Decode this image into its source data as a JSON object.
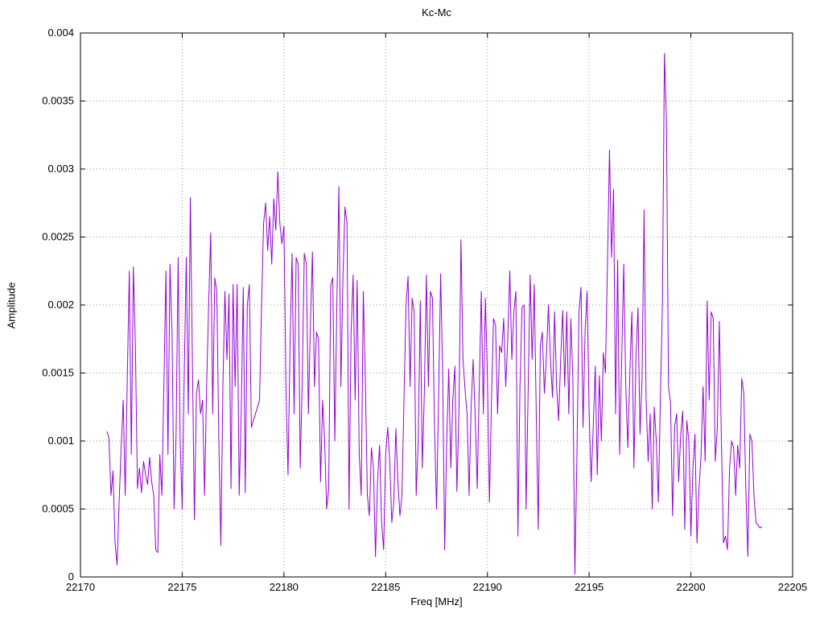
{
  "title": "Kc-Mc",
  "colors": {
    "line": "#9400d3",
    "grid": "#9a9a9a",
    "border": "#000000",
    "background": "#ffffff"
  },
  "chart_data": {
    "type": "line",
    "title": "Kc-Mc",
    "xlabel": "Freq [MHz]",
    "ylabel": "Amplitude",
    "xlim": [
      22170,
      22205
    ],
    "ylim": [
      0,
      0.004
    ],
    "grid": true,
    "legend": "none",
    "x_ticks": [
      22170,
      22175,
      22180,
      22185,
      22190,
      22195,
      22200,
      22205
    ],
    "x_tick_labels": [
      "22170",
      "22175",
      "22180",
      "22185",
      "22190",
      "22195",
      "22200",
      "22205"
    ],
    "y_ticks": [
      0,
      0.0005,
      0.001,
      0.0015,
      0.002,
      0.0025,
      0.003,
      0.0035,
      0.004
    ],
    "y_tick_labels": [
      "0",
      "0.0005",
      "0.001",
      "0.0015",
      "0.002",
      "0.0025",
      "0.003",
      "0.0035",
      "0.004"
    ],
    "series": [
      {
        "name": "Kc-Mc",
        "x_start": 22171.3,
        "x_step": 0.1,
        "y_scale": 0.0001,
        "values": [
          10.7,
          10.2,
          6.0,
          7.8,
          2.5,
          0.9,
          5.5,
          9.5,
          13.0,
          6.0,
          14.5,
          22.5,
          9.0,
          22.8,
          17.0,
          6.5,
          8.0,
          6.2,
          8.5,
          7.5,
          6.8,
          8.8,
          7.0,
          6.0,
          2.0,
          1.8,
          9.0,
          6.0,
          14.0,
          22.5,
          9.0,
          23.0,
          18.0,
          5.0,
          10.5,
          23.5,
          10.0,
          5.0,
          15.0,
          23.5,
          12.0,
          27.9,
          16.0,
          4.2,
          13.5,
          14.5,
          12.0,
          13.0,
          6.0,
          14.0,
          20.0,
          25.3,
          12.0,
          22.0,
          21.0,
          10.0,
          2.3,
          14.0,
          21.0,
          16.0,
          20.8,
          6.5,
          21.5,
          14.0,
          21.5,
          6.0,
          12.0,
          21.3,
          6.2,
          20.0,
          21.5,
          11.0,
          11.5,
          12.0,
          12.5,
          13.0,
          20.0,
          26.0,
          27.5,
          24.0,
          26.5,
          23.0,
          27.8,
          25.5,
          29.8,
          26.0,
          24.5,
          25.8,
          14.0,
          7.5,
          17.0,
          23.8,
          12.0,
          23.5,
          23.0,
          8.0,
          14.5,
          23.8,
          23.0,
          12.0,
          18.5,
          23.9,
          14.0,
          18.0,
          17.5,
          7.0,
          13.0,
          10.0,
          5.0,
          6.5,
          21.5,
          22.0,
          10.0,
          20.0,
          28.7,
          14.0,
          22.0,
          27.2,
          26.0,
          5.0,
          18.0,
          22.2,
          13.0,
          21.8,
          9.0,
          6.0,
          21.0,
          14.5,
          6.0,
          4.5,
          9.5,
          8.0,
          1.5,
          7.0,
          9.7,
          4.0,
          2.0,
          9.0,
          11.0,
          8.5,
          4.0,
          5.5,
          10.9,
          7.0,
          4.5,
          6.0,
          13.0,
          20.0,
          22.1,
          14.0,
          20.5,
          19.5,
          6.0,
          10.0,
          20.3,
          8.0,
          13.5,
          22.2,
          14.0,
          21.0,
          20.5,
          11.0,
          5.0,
          13.0,
          22.3,
          15.0,
          2.0,
          10.0,
          15.3,
          8.0,
          13.0,
          15.5,
          6.3,
          12.0,
          24.8,
          16.0,
          13.8,
          12.0,
          6.0,
          12.5,
          16.0,
          11.8,
          6.5,
          14.0,
          21.0,
          12.0,
          20.5,
          14.8,
          5.5,
          13.0,
          19.0,
          18.5,
          12.0,
          17.0,
          16.5,
          19.0,
          14.0,
          17.5,
          22.5,
          16.0,
          19.5,
          21.0,
          3.0,
          14.0,
          19.8,
          20.0,
          5.0,
          13.5,
          22.2,
          16.0,
          21.5,
          12.0,
          3.5,
          17.0,
          18.0,
          13.5,
          16.2,
          20.0,
          16.0,
          13.2,
          19.5,
          14.0,
          11.5,
          16.0,
          19.6,
          14.0,
          19.5,
          12.0,
          19.0,
          14.5,
          0.2,
          9.0,
          19.5,
          21.3,
          11.0,
          18.0,
          21.0,
          12.0,
          7.0,
          11.0,
          15.5,
          7.5,
          14.8,
          10.0,
          16.5,
          15.0,
          23.0,
          31.4,
          23.5,
          28.5,
          12.0,
          23.3,
          9.0,
          16.0,
          23.0,
          14.0,
          9.5,
          15.0,
          19.5,
          8.0,
          16.0,
          19.8,
          10.5,
          14.5,
          27.0,
          13.0,
          8.5,
          12.0,
          5.0,
          12.5,
          10.0,
          5.5,
          13.0,
          20.0,
          38.5,
          33.5,
          14.0,
          12.8,
          4.5,
          11.0,
          12.0,
          7.0,
          10.5,
          12.2,
          3.5,
          11.5,
          10.0,
          3.0,
          8.0,
          10.5,
          2.5,
          6.5,
          9.0,
          14.0,
          8.5,
          20.3,
          13.0,
          19.5,
          19.0,
          8.5,
          11.0,
          18.8,
          10.0,
          2.5,
          3.0,
          2.0,
          8.0,
          10.0,
          9.5,
          6.0,
          9.7,
          8.0,
          14.6,
          13.5,
          6.5,
          1.5,
          10.5,
          10.0,
          6.0,
          4.0,
          3.8,
          3.6,
          3.7
        ]
      }
    ]
  }
}
